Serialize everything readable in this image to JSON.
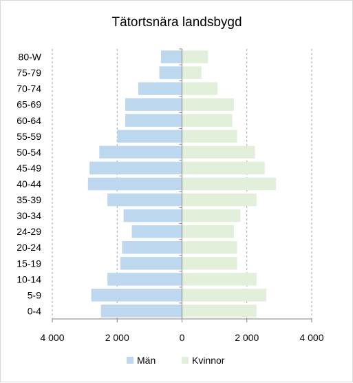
{
  "chart_data": {
    "type": "bar",
    "orientation": "horizontal",
    "title": "Tätortsnära landsbygd",
    "categories": [
      "0-4",
      "5-9",
      "10-14",
      "15-19",
      "20-24",
      "24-29",
      "30-34",
      "35-39",
      "40-44",
      "45-49",
      "50-54",
      "55-59",
      "60-64",
      "65-69",
      "70-74",
      "75-79",
      "80-W"
    ],
    "series": [
      {
        "name": "Män",
        "color": "#bdd7ee",
        "values": [
          -2500,
          -2800,
          -2300,
          -1900,
          -1850,
          -1550,
          -1800,
          -2300,
          -2900,
          -2850,
          -2550,
          -2000,
          -1750,
          -1750,
          -1350,
          -700,
          -650
        ]
      },
      {
        "name": "Kvinnor",
        "color": "#e2efda",
        "values": [
          2300,
          2600,
          2300,
          1700,
          1700,
          1600,
          1800,
          2300,
          2900,
          2550,
          2250,
          1700,
          1550,
          1600,
          1100,
          600,
          800
        ]
      }
    ],
    "xlim": [
      -4000,
      4000
    ],
    "xticks": [
      -4000,
      -2000,
      0,
      2000,
      4000
    ],
    "xtick_labels": [
      "4 000",
      "2 000",
      "0",
      "2 000",
      "4 000"
    ],
    "grid": "vertical-dashed",
    "legend_position": "bottom"
  },
  "colors": {
    "axis": "#808080",
    "grid": "#a6a6a6",
    "border": "#d9d9d9"
  }
}
